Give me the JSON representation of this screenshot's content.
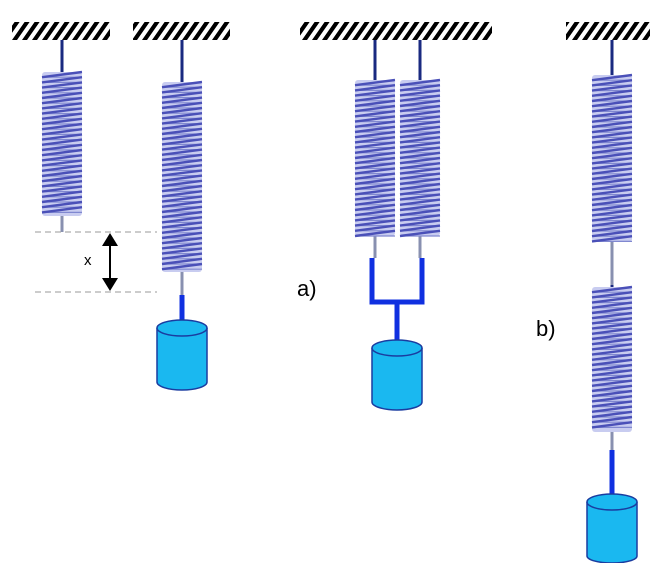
{
  "labels": {
    "displacement": "x",
    "parallel": "a)",
    "series": "b)"
  }
}
